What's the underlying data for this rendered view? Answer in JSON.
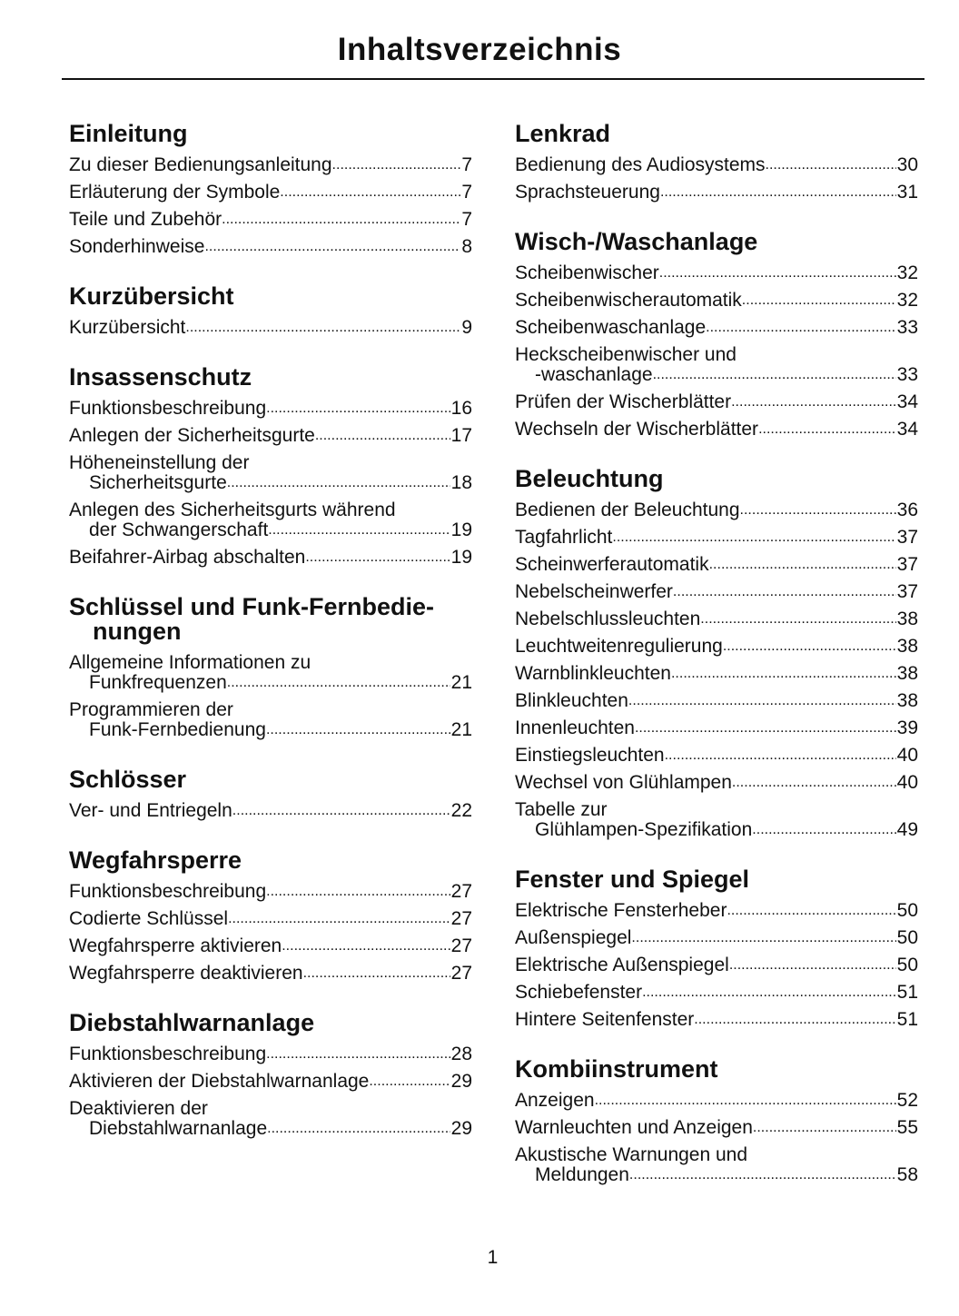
{
  "title": "Inhaltsverzeichnis",
  "page_number": "1",
  "columns": [
    [
      {
        "heading": [
          "Einleitung"
        ],
        "entries": [
          {
            "lines": [
              "Zu dieser Bedienungsanleitung"
            ],
            "page": "7"
          },
          {
            "lines": [
              "Erläuterung der Symbole"
            ],
            "page": "7"
          },
          {
            "lines": [
              "Teile und Zubehör"
            ],
            "page": "7"
          },
          {
            "lines": [
              "Sonderhinweise"
            ],
            "page": "8"
          }
        ]
      },
      {
        "heading": [
          "Kurzübersicht"
        ],
        "entries": [
          {
            "lines": [
              "Kurzübersicht"
            ],
            "page": "9"
          }
        ]
      },
      {
        "heading": [
          "Insassenschutz"
        ],
        "entries": [
          {
            "lines": [
              "Funktionsbeschreibung"
            ],
            "page": "16"
          },
          {
            "lines": [
              "Anlegen der Sicherheitsgurte"
            ],
            "page": "17"
          },
          {
            "lines": [
              "Höheneinstellung der",
              "Sicherheitsgurte"
            ],
            "page": "18"
          },
          {
            "lines": [
              "Anlegen des Sicherheitsgurts während",
              "der Schwangerschaft"
            ],
            "page": "19"
          },
          {
            "lines": [
              "Beifahrer-Airbag abschalten"
            ],
            "page": "19"
          }
        ]
      },
      {
        "heading": [
          "Schlüssel und Funk-Fernbedie-",
          "nungen"
        ],
        "entries": [
          {
            "lines": [
              "Allgemeine Informationen zu",
              "Funkfrequenzen"
            ],
            "page": "21"
          },
          {
            "lines": [
              "Programmieren der",
              "Funk-Fernbedienung"
            ],
            "page": "21"
          }
        ]
      },
      {
        "heading": [
          "Schlösser"
        ],
        "entries": [
          {
            "lines": [
              "Ver- und Entriegeln"
            ],
            "page": "22"
          }
        ]
      },
      {
        "heading": [
          "Wegfahrsperre"
        ],
        "entries": [
          {
            "lines": [
              "Funktionsbeschreibung"
            ],
            "page": "27"
          },
          {
            "lines": [
              "Codierte Schlüssel"
            ],
            "page": "27"
          },
          {
            "lines": [
              "Wegfahrsperre aktivieren"
            ],
            "page": "27"
          },
          {
            "lines": [
              "Wegfahrsperre deaktivieren"
            ],
            "page": "27"
          }
        ]
      },
      {
        "heading": [
          "Diebstahlwarnanlage"
        ],
        "entries": [
          {
            "lines": [
              "Funktionsbeschreibung"
            ],
            "page": "28"
          },
          {
            "lines": [
              "Aktivieren der Diebstahlwarnanlage"
            ],
            "page": "29"
          },
          {
            "lines": [
              "Deaktivieren der",
              "Diebstahlwarnanlage"
            ],
            "page": "29"
          }
        ]
      }
    ],
    [
      {
        "heading": [
          "Lenkrad"
        ],
        "entries": [
          {
            "lines": [
              "Bedienung des Audiosystems"
            ],
            "page": "30"
          },
          {
            "lines": [
              "Sprachsteuerung"
            ],
            "page": "31"
          }
        ]
      },
      {
        "heading": [
          "Wisch-/Waschanlage"
        ],
        "entries": [
          {
            "lines": [
              "Scheibenwischer"
            ],
            "page": "32"
          },
          {
            "lines": [
              "Scheibenwischerautomatik"
            ],
            "page": "32"
          },
          {
            "lines": [
              "Scheibenwaschanlage"
            ],
            "page": "33"
          },
          {
            "lines": [
              "Heckscheibenwischer und",
              "-waschanlage"
            ],
            "page": "33"
          },
          {
            "lines": [
              "Prüfen der Wischerblätter"
            ],
            "page": "34"
          },
          {
            "lines": [
              "Wechseln der Wischerblätter"
            ],
            "page": "34"
          }
        ]
      },
      {
        "heading": [
          "Beleuchtung"
        ],
        "entries": [
          {
            "lines": [
              "Bedienen der Beleuchtung"
            ],
            "page": "36"
          },
          {
            "lines": [
              "Tagfahrlicht"
            ],
            "page": "37"
          },
          {
            "lines": [
              "Scheinwerferautomatik"
            ],
            "page": "37"
          },
          {
            "lines": [
              "Nebelscheinwerfer"
            ],
            "page": "37"
          },
          {
            "lines": [
              "Nebelschlussleuchten"
            ],
            "page": "38"
          },
          {
            "lines": [
              "Leuchtweitenregulierung"
            ],
            "page": "38"
          },
          {
            "lines": [
              "Warnblinkleuchten"
            ],
            "page": "38"
          },
          {
            "lines": [
              "Blinkleuchten"
            ],
            "page": "38"
          },
          {
            "lines": [
              "Innenleuchten"
            ],
            "page": "39"
          },
          {
            "lines": [
              "Einstiegsleuchten"
            ],
            "page": "40"
          },
          {
            "lines": [
              "Wechsel von Glühlampen"
            ],
            "page": "40"
          },
          {
            "lines": [
              "Tabelle zur",
              "Glühlampen-Spezifikation"
            ],
            "page": "49"
          }
        ]
      },
      {
        "heading": [
          "Fenster und Spiegel"
        ],
        "entries": [
          {
            "lines": [
              "Elektrische Fensterheber"
            ],
            "page": "50"
          },
          {
            "lines": [
              "Außenspiegel"
            ],
            "page": "50"
          },
          {
            "lines": [
              "Elektrische Außenspiegel"
            ],
            "page": "50"
          },
          {
            "lines": [
              "Schiebefenster"
            ],
            "page": "51"
          },
          {
            "lines": [
              "Hintere Seitenfenster"
            ],
            "page": "51"
          }
        ]
      },
      {
        "heading": [
          "Kombiinstrument"
        ],
        "entries": [
          {
            "lines": [
              "Anzeigen"
            ],
            "page": "52"
          },
          {
            "lines": [
              "Warnleuchten und Anzeigen"
            ],
            "page": "55"
          },
          {
            "lines": [
              "Akustische Warnungen und",
              "Meldungen"
            ],
            "page": "58"
          }
        ]
      }
    ]
  ]
}
